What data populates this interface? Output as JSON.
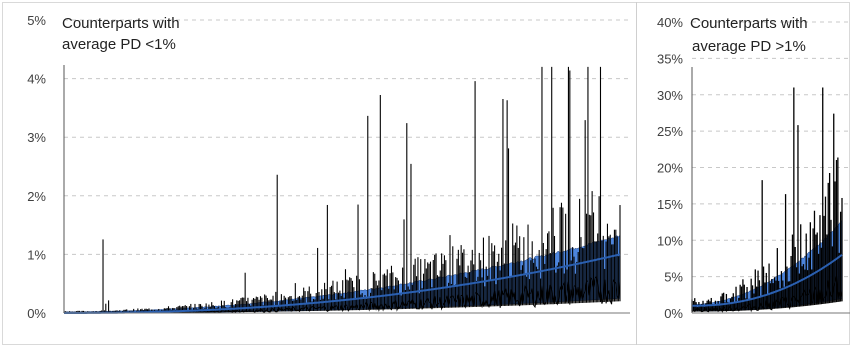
{
  "chart_data": [
    {
      "type": "line",
      "title_lines": [
        "Counterparts with",
        "average PD <1%"
      ],
      "xlabel": "",
      "ylabel": "",
      "ylim": [
        0,
        0.05
      ],
      "yticks": [
        {
          "value": 0,
          "label": "0%"
        },
        {
          "value": 0.01,
          "label": "1%"
        },
        {
          "value": 0.02,
          "label": "2%"
        },
        {
          "value": 0.03,
          "label": "3%"
        },
        {
          "value": 0.04,
          "label": "4%"
        },
        {
          "value": 0.05,
          "label": "5%"
        }
      ],
      "grid": true,
      "n_counterparties": 400,
      "series_summary": {
        "average_pd_start": 0.0,
        "average_pd_end": 0.01,
        "band_upper_end": 0.013,
        "max_spike": 0.042
      },
      "colors": {
        "spikes": "#000000",
        "band": "#3a78d8",
        "average": "#2a5fb0",
        "grid": "#c8c8c8"
      }
    },
    {
      "type": "line",
      "title_lines": [
        "Counterparts with",
        "average PD >1%"
      ],
      "xlabel": "",
      "ylabel": "",
      "ylim": [
        0,
        0.4
      ],
      "yticks": [
        {
          "value": 0,
          "label": "0%"
        },
        {
          "value": 0.05,
          "label": "5%"
        },
        {
          "value": 0.1,
          "label": "10%"
        },
        {
          "value": 0.15,
          "label": "15%"
        },
        {
          "value": 0.2,
          "label": "20%"
        },
        {
          "value": 0.25,
          "label": "25%"
        },
        {
          "value": 0.3,
          "label": "30%"
        },
        {
          "value": 0.35,
          "label": "35%"
        },
        {
          "value": 0.4,
          "label": "40%"
        }
      ],
      "grid": true,
      "n_counterparties": 110,
      "series_summary": {
        "average_pd_start": 0.01,
        "average_pd_end": 0.08,
        "band_upper_end": 0.125,
        "max_spike": 0.31
      },
      "colors": {
        "spikes": "#000000",
        "band": "#3a78d8",
        "average": "#2a5fb0",
        "grid": "#c8c8c8"
      }
    }
  ]
}
